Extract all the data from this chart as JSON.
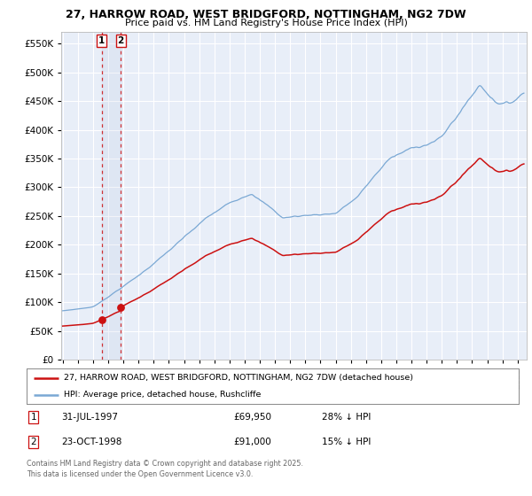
{
  "title_line1": "27, HARROW ROAD, WEST BRIDGFORD, NOTTINGHAM, NG2 7DW",
  "title_line2": "Price paid vs. HM Land Registry's House Price Index (HPI)",
  "background_color": "#ffffff",
  "plot_bg_color": "#e8eef8",
  "grid_color": "#ffffff",
  "hpi_color": "#7aa8d4",
  "price_color": "#cc1111",
  "sale1_date_year": 1997.58,
  "sale1_price": 69950,
  "sale2_date_year": 1998.82,
  "sale2_price": 91000,
  "legend_entry1": "27, HARROW ROAD, WEST BRIDGFORD, NOTTINGHAM, NG2 7DW (detached house)",
  "legend_entry2": "HPI: Average price, detached house, Rushcliffe",
  "table_row1": [
    "1",
    "31-JUL-1997",
    "£69,950",
    "28% ↓ HPI"
  ],
  "table_row2": [
    "2",
    "23-OCT-1998",
    "£91,000",
    "15% ↓ HPI"
  ],
  "footnote": "Contains HM Land Registry data © Crown copyright and database right 2025.\nThis data is licensed under the Open Government Licence v3.0.",
  "ylim": [
    0,
    570000
  ],
  "xlim_start": 1994.9,
  "xlim_end": 2025.6,
  "yticks": [
    0,
    50000,
    100000,
    150000,
    200000,
    250000,
    300000,
    350000,
    400000,
    450000,
    500000,
    550000
  ]
}
